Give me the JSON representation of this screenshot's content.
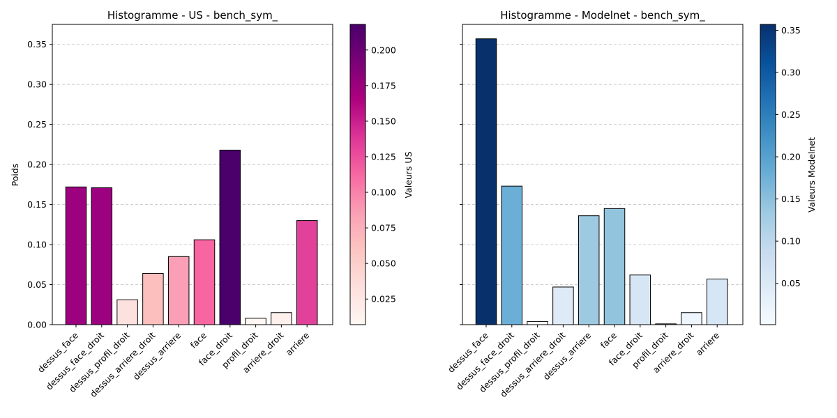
{
  "chart_data": [
    {
      "type": "bar",
      "title": "Histogramme - US - bench_sym_",
      "xlabel": "",
      "ylabel": "Poids",
      "ylim": [
        0,
        0.375
      ],
      "yticks": [
        0.0,
        0.05,
        0.1,
        0.15,
        0.2,
        0.25,
        0.3,
        0.35
      ],
      "ytick_labels": [
        "0.00",
        "0.05",
        "0.10",
        "0.15",
        "0.20",
        "0.25",
        "0.30",
        "0.35"
      ],
      "grid": "y-dashed",
      "categories": [
        "dessus_face",
        "dessus_face_droit",
        "dessus_profil_droit",
        "dessus_arriere_droit",
        "dessus_arriere",
        "face",
        "face_droit",
        "profil_droit",
        "arriere_droit",
        "arriere"
      ],
      "values": [
        0.172,
        0.171,
        0.031,
        0.064,
        0.085,
        0.106,
        0.218,
        0.008,
        0.015,
        0.13
      ],
      "colors": [
        "#9c017f",
        "#9c017f",
        "#fde1de",
        "#fcbfbd",
        "#fa9fb5",
        "#f766a0",
        "#49006a",
        "#fff7f3",
        "#fef1ed",
        "#e2419a"
      ],
      "colorbar": {
        "label": "Valeurs US",
        "colormap": "RdPu",
        "range": [
          0.007,
          0.218
        ],
        "ticks": [
          0.025,
          0.05,
          0.075,
          0.1,
          0.125,
          0.15,
          0.175,
          0.2
        ],
        "tick_labels": [
          "0.025",
          "0.050",
          "0.075",
          "0.100",
          "0.125",
          "0.150",
          "0.175",
          "0.200"
        ],
        "stops": [
          "#fff7f3",
          "#fde0dd",
          "#fcc5c0",
          "#fa9fb5",
          "#f768a1",
          "#dd3497",
          "#ae017e",
          "#7a0177",
          "#49006a"
        ]
      }
    },
    {
      "type": "bar",
      "title": "Histogramme - Modelnet - bench_sym_",
      "xlabel": "",
      "ylabel": "",
      "ylim": [
        0,
        0.375
      ],
      "yticks": [
        0.0,
        0.05,
        0.1,
        0.15,
        0.2,
        0.25,
        0.3,
        0.35
      ],
      "ytick_labels": [],
      "grid": "y-dashed",
      "categories": [
        "dessus_face",
        "dessus_face_droit",
        "dessus_profil_droit",
        "dessus_arriere_droit",
        "dessus_arriere",
        "face",
        "face_droit",
        "profil_droit",
        "arriere_droit",
        "arriere"
      ],
      "values": [
        0.357,
        0.173,
        0.004,
        0.047,
        0.136,
        0.145,
        0.062,
        0.001,
        0.015,
        0.057
      ],
      "colors": [
        "#08306b",
        "#6baed6",
        "#f7fbff",
        "#deebf7",
        "#9ecae1",
        "#92c4de",
        "#d6e6f4",
        "#f7fbff",
        "#eef5fc",
        "#d6e6f4"
      ],
      "colorbar": {
        "label": "Valeurs Modelnet",
        "colormap": "Blues",
        "range": [
          0.001,
          0.357
        ],
        "ticks": [
          0.05,
          0.1,
          0.15,
          0.2,
          0.25,
          0.3,
          0.35
        ],
        "tick_labels": [
          "0.05",
          "0.10",
          "0.15",
          "0.20",
          "0.25",
          "0.30",
          "0.35"
        ],
        "stops": [
          "#f7fbff",
          "#deebf7",
          "#c6dbef",
          "#9ecae1",
          "#6baed6",
          "#4292c6",
          "#2171b5",
          "#08519c",
          "#08306b"
        ]
      }
    }
  ]
}
